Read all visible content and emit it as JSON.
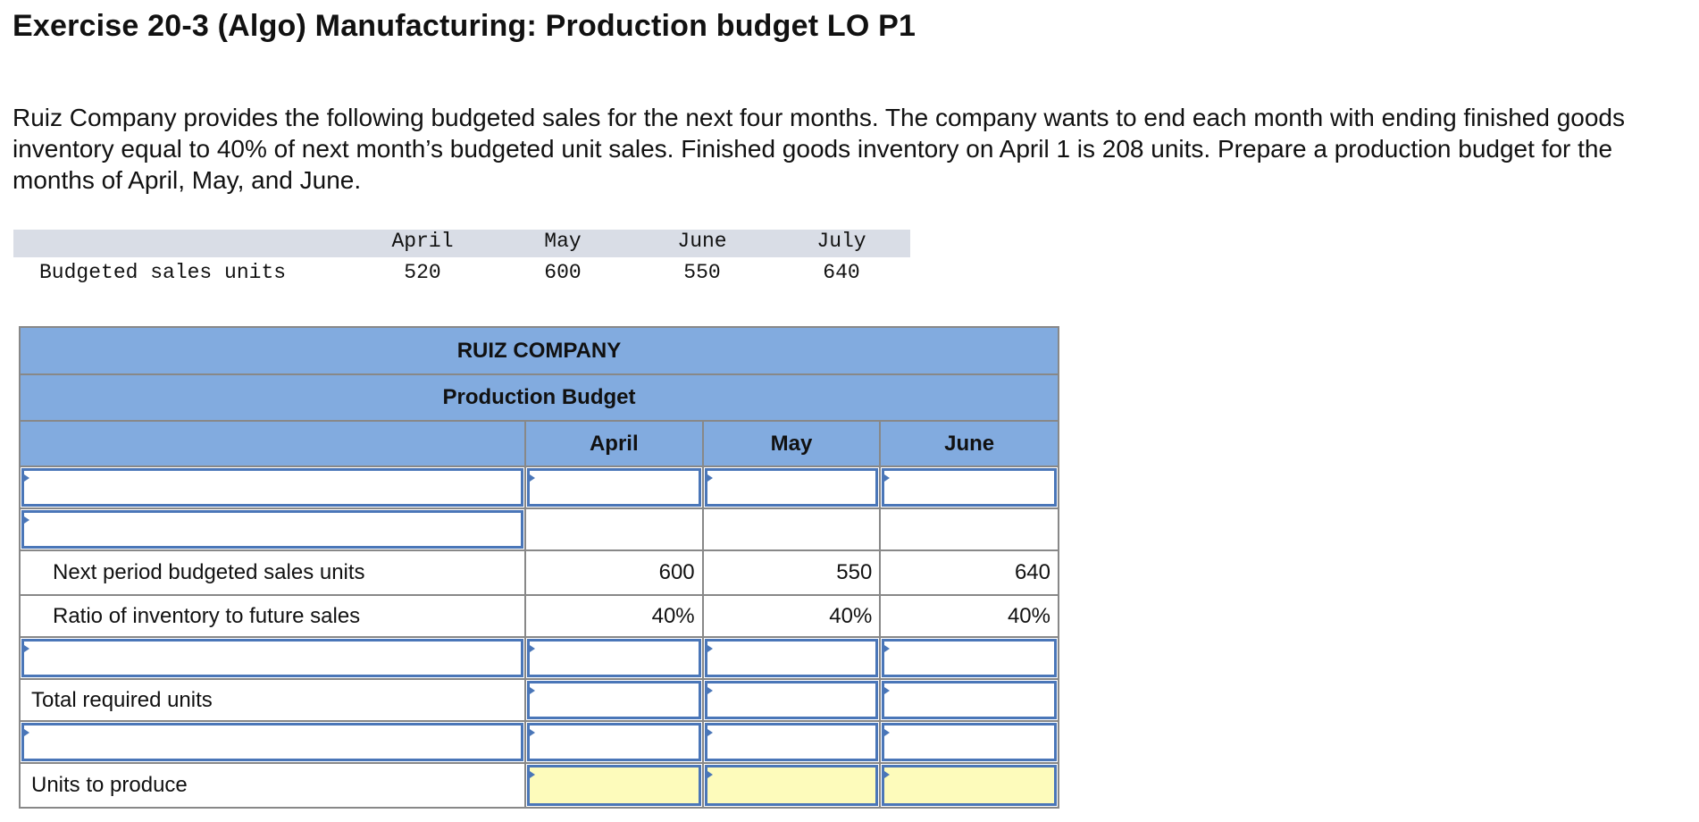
{
  "title": "Exercise 20-3 (Algo) Manufacturing: Production budget LO P1",
  "instructions": "Ruiz Company provides the following budgeted sales for the next four months. The company wants to end each month with ending finished goods inventory equal to 40% of next month’s budgeted unit sales. Finished goods inventory on April 1 is 208 units. Prepare a production budget for the months of April, May, and June.",
  "sales_table": {
    "months": [
      "April",
      "May",
      "June",
      "July"
    ],
    "row_label": "Budgeted sales units",
    "values": [
      "520",
      "600",
      "550",
      "640"
    ]
  },
  "budget": {
    "company": "RUIZ COMPANY",
    "name": "Production Budget",
    "columns": [
      "April",
      "May",
      "June"
    ],
    "rows": [
      {
        "label": "",
        "values": [
          "",
          "",
          ""
        ]
      },
      {
        "label": "",
        "values": [
          "",
          "",
          ""
        ]
      },
      {
        "label": "Next period budgeted sales units",
        "values": [
          "600",
          "550",
          "640"
        ]
      },
      {
        "label": "Ratio of inventory to future sales",
        "values": [
          "40%",
          "40%",
          "40%"
        ]
      },
      {
        "label": "",
        "values": [
          "",
          "",
          ""
        ]
      },
      {
        "label": "Total required units",
        "values": [
          "",
          "",
          ""
        ]
      },
      {
        "label": "",
        "values": [
          "",
          "",
          ""
        ]
      },
      {
        "label": "Units to produce",
        "values": [
          "",
          "",
          ""
        ]
      }
    ]
  },
  "colors": {
    "header_blue": "#82abdf",
    "input_border": "#4a76b8",
    "highlight_yellow": "#fdfbbb"
  }
}
